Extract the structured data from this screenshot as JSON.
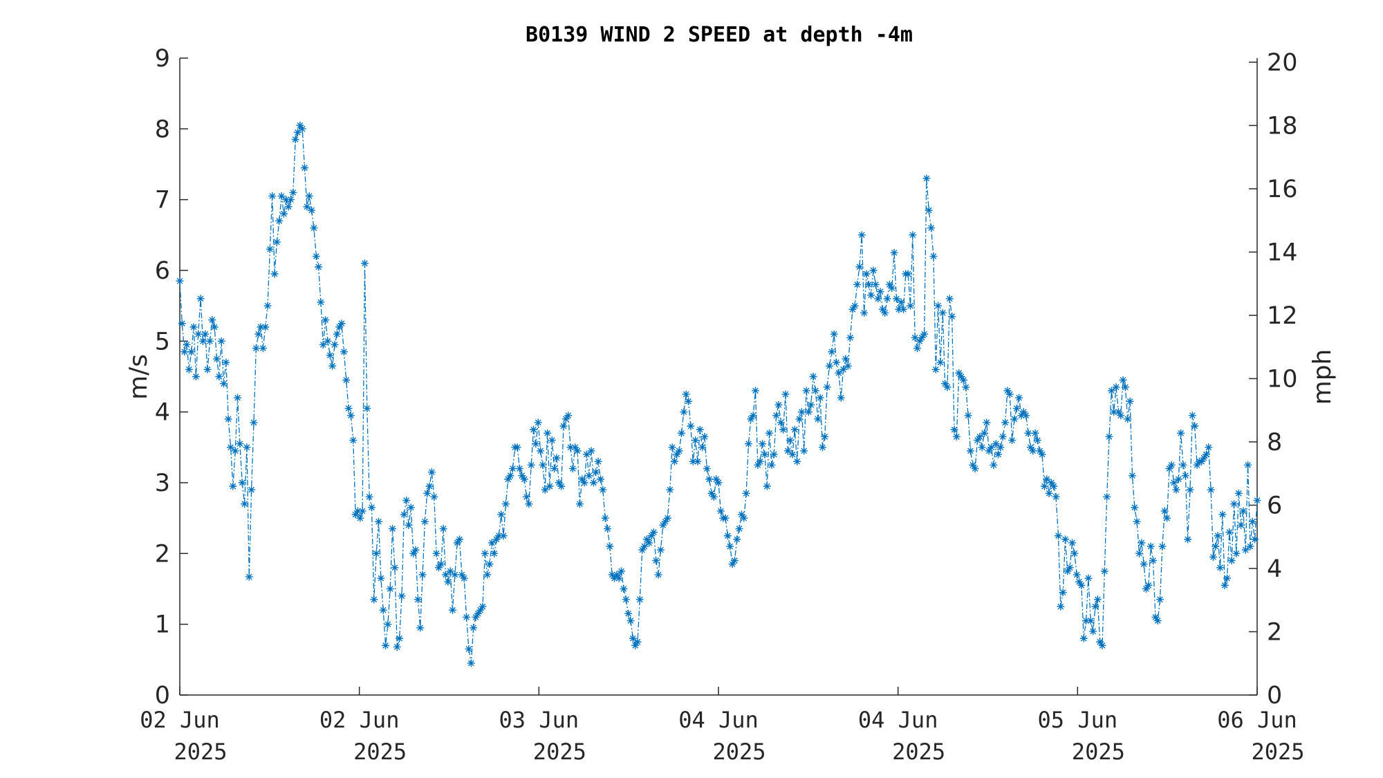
{
  "chart_data": {
    "type": "line",
    "title": "B0139 WIND 2 SPEED at depth -4m",
    "ylabel": "m/s",
    "ylabel_right": "mph",
    "ylim": [
      0,
      9
    ],
    "ylim_right": [
      0,
      20.13
    ],
    "yticks": [
      "0",
      "1",
      "2",
      "3",
      "4",
      "5",
      "6",
      "7",
      "8",
      "9"
    ],
    "yticks_right": [
      "0",
      "2",
      "4",
      "6",
      "8",
      "10",
      "12",
      "14",
      "16",
      "18",
      "20"
    ],
    "xlim": [
      "2025-06-02T00:00",
      "2025-06-06T00:00"
    ],
    "xticks": [
      {
        "line1": "02 Jun",
        "line2": "2025"
      },
      {
        "line1": "02 Jun",
        "line2": "2025"
      },
      {
        "line1": "03 Jun",
        "line2": "2025"
      },
      {
        "line1": "04 Jun",
        "line2": "2025"
      },
      {
        "line1": "04 Jun",
        "line2": "2025"
      },
      {
        "line1": "05 Jun",
        "line2": "2025"
      },
      {
        "line1": "06 Jun",
        "line2": "2025"
      }
    ],
    "grid": false,
    "series_color": "#0072BD",
    "marker": "asterisk",
    "line_style": "dash-dot",
    "series": [
      {
        "name": "",
        "x_start": "2025-06-02T00:00",
        "x_end": "2025-06-06T00:00",
        "values": [
          5.85,
          5.25,
          4.85,
          4.95,
          4.6,
          4.85,
          5.2,
          4.5,
          5.1,
          5.6,
          5.0,
          5.1,
          4.6,
          5.0,
          5.3,
          5.2,
          4.75,
          4.5,
          5.0,
          4.4,
          4.7,
          3.9,
          3.5,
          2.95,
          3.45,
          4.2,
          3.55,
          3.0,
          2.7,
          3.5,
          1.67,
          2.9,
          3.85,
          4.9,
          5.1,
          5.2,
          4.9,
          5.2,
          5.5,
          6.3,
          7.05,
          5.95,
          6.4,
          6.7,
          7.05,
          6.8,
          7.0,
          6.9,
          7.0,
          7.1,
          7.85,
          7.95,
          8.05,
          8.0,
          7.45,
          6.9,
          7.05,
          6.85,
          6.6,
          6.2,
          6.05,
          5.55,
          4.95,
          5.3,
          5.0,
          4.8,
          4.65,
          4.95,
          5.1,
          5.2,
          5.25,
          4.85,
          4.45,
          4.05,
          3.95,
          3.6,
          2.55,
          2.6,
          2.5,
          2.6,
          6.1,
          4.05,
          2.8,
          2.65,
          1.35,
          2.0,
          2.45,
          1.65,
          1.2,
          0.7,
          1.0,
          1.5,
          2.35,
          1.8,
          0.68,
          0.8,
          1.4,
          2.55,
          2.75,
          2.4,
          2.65,
          2.0,
          2.05,
          1.35,
          0.95,
          1.7,
          2.45,
          2.85,
          2.95,
          3.15,
          2.8,
          2.0,
          1.8,
          1.85,
          2.35,
          1.7,
          1.6,
          1.75,
          1.2,
          1.7,
          2.15,
          2.2,
          1.7,
          1.65,
          1.1,
          0.65,
          0.45,
          0.95,
          1.1,
          1.15,
          1.2,
          1.25,
          2.0,
          1.7,
          1.85,
          2.15,
          2.0,
          2.2,
          2.25,
          2.55,
          2.25,
          2.7,
          3.05,
          3.1,
          3.2,
          3.5,
          3.5,
          3.2,
          3.1,
          3.05,
          2.8,
          2.7,
          3.25,
          3.75,
          3.55,
          3.85,
          3.45,
          3.25,
          2.9,
          3.7,
          2.95,
          3.6,
          3.2,
          3.35,
          3.0,
          2.95,
          3.8,
          3.9,
          3.95,
          3.5,
          3.2,
          3.5,
          3.45,
          2.7,
          3.05,
          3.0,
          3.4,
          3.1,
          3.45,
          3.0,
          3.15,
          3.3,
          3.05,
          2.9,
          2.5,
          2.35,
          2.1,
          1.7,
          1.65,
          1.7,
          1.65,
          1.75,
          1.5,
          1.35,
          1.15,
          1.05,
          0.8,
          0.7,
          0.75,
          1.35,
          2.05,
          2.1,
          2.2,
          2.15,
          2.25,
          2.3,
          1.9,
          1.7,
          2.05,
          2.4,
          2.45,
          2.5,
          2.9,
          3.5,
          3.3,
          3.4,
          3.45,
          3.7,
          4.0,
          4.25,
          4.15,
          3.8,
          3.3,
          3.6,
          3.3,
          3.75,
          3.5,
          3.65,
          3.2,
          3.05,
          2.85,
          2.8,
          3.05,
          3.0,
          2.6,
          2.5,
          2.5,
          2.25,
          2.1,
          1.85,
          1.9,
          2.2,
          2.35,
          2.55,
          2.5,
          2.85,
          3.55,
          3.9,
          3.95,
          4.3,
          3.25,
          3.3,
          3.55,
          3.4,
          2.95,
          3.7,
          3.25,
          3.4,
          3.95,
          4.1,
          3.85,
          3.75,
          4.25,
          3.45,
          3.6,
          3.4,
          3.75,
          3.3,
          3.9,
          4.0,
          3.45,
          4.3,
          4.0,
          4.1,
          4.5,
          4.3,
          3.9,
          4.2,
          3.5,
          3.65,
          4.35,
          4.65,
          4.85,
          5.1,
          4.7,
          4.55,
          4.2,
          4.6,
          4.75,
          4.65,
          5.05,
          5.45,
          5.5,
          5.8,
          6.05,
          6.5,
          5.4,
          5.95,
          5.8,
          5.65,
          6.0,
          5.8,
          5.6,
          5.7,
          5.45,
          5.4,
          5.6,
          5.8,
          5.75,
          6.25,
          5.6,
          5.45,
          5.55,
          5.45,
          5.95,
          5.95,
          5.5,
          6.5,
          5.05,
          4.9,
          5.0,
          5.05,
          5.1,
          7.3,
          6.85,
          6.6,
          6.2,
          4.6,
          5.5,
          4.7,
          5.4,
          4.4,
          4.35,
          5.6,
          5.35,
          3.75,
          3.65,
          4.55,
          4.5,
          4.45,
          4.35,
          3.95,
          3.45,
          3.25,
          3.2,
          3.6,
          3.65,
          3.5,
          3.7,
          3.85,
          3.45,
          3.5,
          3.25,
          3.55,
          3.4,
          3.5,
          3.65,
          3.85,
          4.3,
          4.25,
          3.6,
          3.9,
          4.05,
          4.2,
          3.95,
          4.0,
          3.95,
          3.7,
          3.5,
          3.45,
          3.7,
          3.6,
          3.45,
          3.4,
          2.95,
          3.05,
          2.85,
          3.0,
          2.95,
          2.8,
          2.25,
          1.25,
          1.45,
          2.2,
          1.75,
          1.8,
          2.15,
          2.0,
          1.7,
          1.6,
          1.55,
          0.8,
          1.05,
          1.65,
          1.05,
          0.9,
          1.25,
          1.35,
          0.75,
          0.7,
          1.75,
          2.8,
          3.65,
          4.3,
          4.0,
          4.35,
          4.0,
          3.95,
          4.45,
          4.35,
          3.9,
          4.15,
          3.1,
          2.65,
          2.45,
          2.0,
          2.15,
          1.85,
          1.5,
          1.55,
          2.1,
          1.9,
          1.1,
          1.05,
          1.35,
          2.1,
          2.6,
          2.5,
          3.2,
          3.25,
          3.0,
          2.9,
          3.05,
          3.7,
          3.25,
          3.1,
          2.2,
          2.9,
          3.95,
          3.8,
          3.25,
          3.3,
          3.3,
          3.35,
          3.4,
          3.5,
          2.9,
          1.95,
          2.1,
          2.25,
          1.8,
          2.55,
          1.55,
          1.65,
          2.3,
          1.9,
          2.7,
          2.0,
          2.85,
          2.4,
          2.6,
          2.05,
          3.25,
          2.1,
          2.45,
          2.2,
          2.75
        ]
      }
    ]
  }
}
